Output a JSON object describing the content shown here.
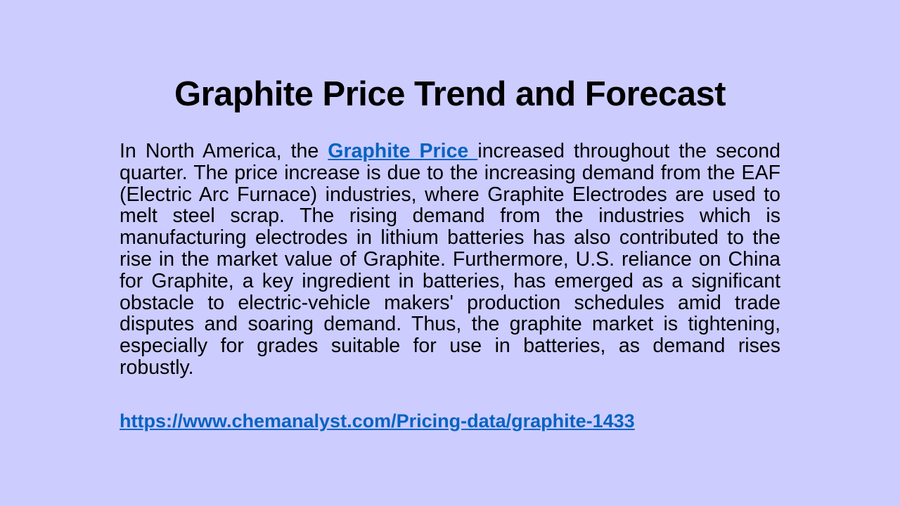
{
  "title": "Graphite Price Trend and Forecast",
  "paragraph": {
    "before": "In North America, the ",
    "link": "Graphite Price ",
    "after": "increased throughout the second quarter. The price increase is due to the increasing demand from the EAF (Electric Arc Furnace) industries, where Graphite Electrodes are used to melt steel scrap. The rising demand from the industries which is manufacturing electrodes in lithium batteries has also contributed to the rise in the market value of Graphite. Furthermore, U.S. reliance on China for Graphite, a key ingredient in batteries, has emerged as a significant obstacle to electric-vehicle makers' production schedules amid trade disputes and soaring demand. Thus, the graphite market is tightening, especially for grades suitable for use in batteries, as demand rises robustly."
  },
  "url": "https://www.chemanalyst.com/Pricing-data/graphite-1433"
}
